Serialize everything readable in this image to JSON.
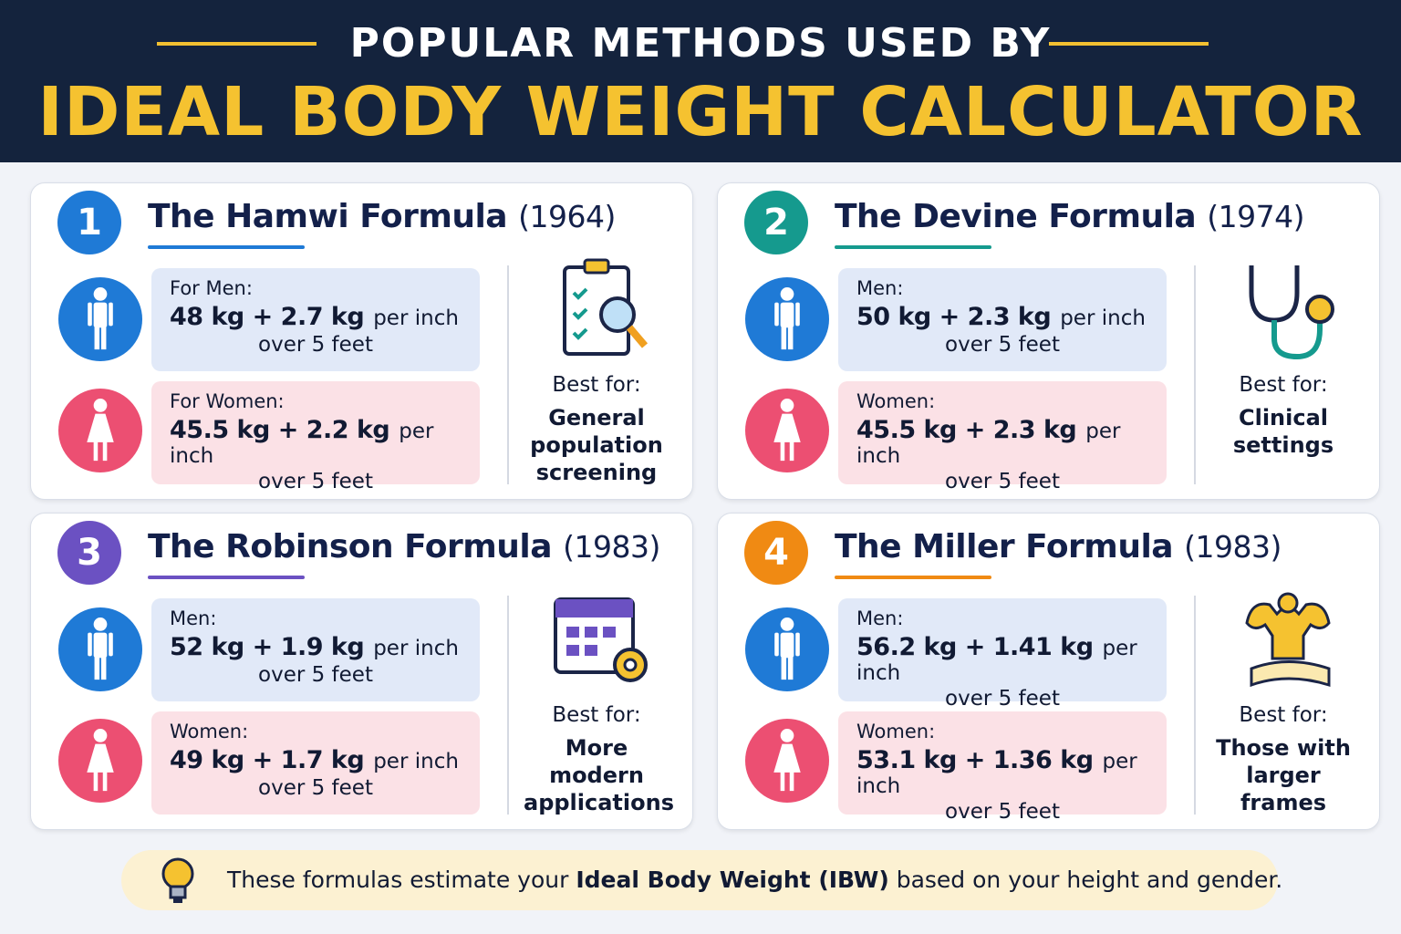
{
  "header": {
    "subtitle": "POPULAR METHODS USED BY",
    "title": "IDEAL BODY WEIGHT CALCULATOR"
  },
  "cards": [
    {
      "number": "1",
      "name": "The Hamwi Formula",
      "year": "(1964)",
      "color": "#1f7ad6",
      "men": {
        "label": "For Men:",
        "formula": "48 kg + 2.7 kg",
        "unit": "per inch",
        "note": "over 5 feet"
      },
      "women": {
        "label": "For Women:",
        "formula": "45.5 kg + 2.2 kg",
        "unit": "per inch",
        "note": "over 5 feet"
      },
      "best_label": "Best for:",
      "best": "General population screening",
      "icon": "clipboard"
    },
    {
      "number": "2",
      "name": "The Devine Formula",
      "year": "(1974)",
      "color": "#159a8e",
      "men": {
        "label": "Men:",
        "formula": "50 kg + 2.3 kg",
        "unit": "per inch",
        "note": "over 5 feet"
      },
      "women": {
        "label": "Women:",
        "formula": "45.5 kg + 2.3 kg",
        "unit": "per inch",
        "note": "over 5 feet"
      },
      "best_label": "Best for:",
      "best": "Clinical settings",
      "icon": "stethoscope"
    },
    {
      "number": "3",
      "name": "The Robinson Formula",
      "year": "(1983)",
      "color": "#6b51c2",
      "men": {
        "label": "Men:",
        "formula": "52 kg + 1.9 kg",
        "unit": "per inch",
        "note": "over 5 feet"
      },
      "women": {
        "label": "Women:",
        "formula": "49 kg + 1.7 kg",
        "unit": "per inch",
        "note": "over 5 feet"
      },
      "best_label": "Best for:",
      "best": "More modern applications",
      "icon": "calendar"
    },
    {
      "number": "4",
      "name": "The Miller Formula",
      "year": "(1983)",
      "color": "#f08a13",
      "men": {
        "label": "Men:",
        "formula": "56.2 kg + 1.41 kg",
        "unit": "per inch",
        "note": "over 5 feet"
      },
      "women": {
        "label": "Women:",
        "formula": "53.1 kg + 1.36 kg",
        "unit": "per inch",
        "note": "over 5 feet"
      },
      "best_label": "Best for:",
      "best": "Those with larger frames",
      "icon": "muscle"
    }
  ],
  "footer": {
    "before": "These formulas estimate your",
    "bold": "Ideal Body Weight (IBW)",
    "after": "based on your height and gender."
  }
}
